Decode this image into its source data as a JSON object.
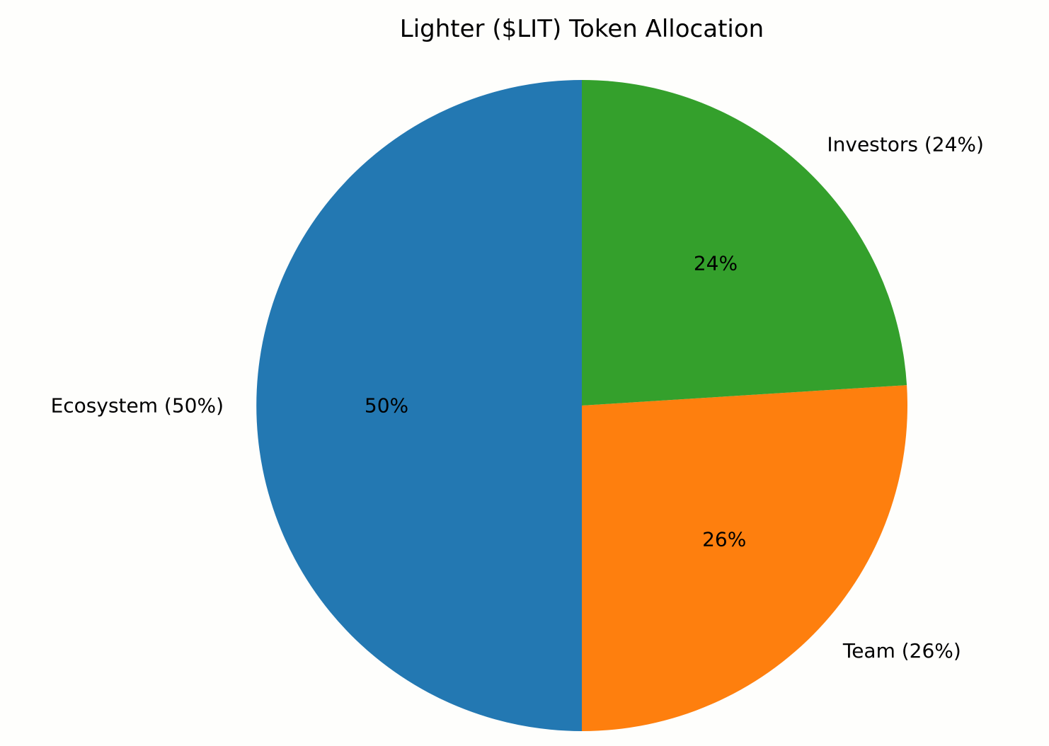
{
  "chart_data": {
    "type": "pie",
    "title": "Lighter ($LIT) Token Allocation",
    "start_angle_deg": 90,
    "direction": "counterclockwise",
    "slices": [
      {
        "name": "Ecosystem",
        "value": 50,
        "label": "Ecosystem (50%)",
        "pct_label": "50%",
        "color": "#2378b2"
      },
      {
        "name": "Team",
        "value": 26,
        "label": "Team (26%)",
        "pct_label": "26%",
        "color": "#fe7f0e"
      },
      {
        "name": "Investors",
        "value": 24,
        "label": "Investors (24%)",
        "pct_label": "24%",
        "color": "#34a02c"
      }
    ]
  }
}
